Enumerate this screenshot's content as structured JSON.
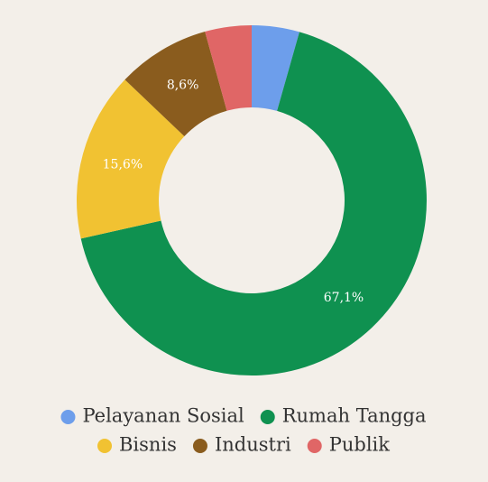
{
  "chart_data": {
    "type": "pie",
    "categories": [
      "Pelayanan Sosial",
      "Rumah Tangga",
      "Bisnis",
      "Industri",
      "Publik"
    ],
    "values": [
      4.4,
      67.1,
      15.6,
      8.6,
      4.3
    ],
    "value_labels": [
      null,
      "67,1%",
      "15,6%",
      "8,6%",
      null
    ],
    "colors": [
      "#6d9eeb",
      "#0f9150",
      "#f1c232",
      "#8a5c1e",
      "#e06666"
    ],
    "legend": "bottom"
  }
}
